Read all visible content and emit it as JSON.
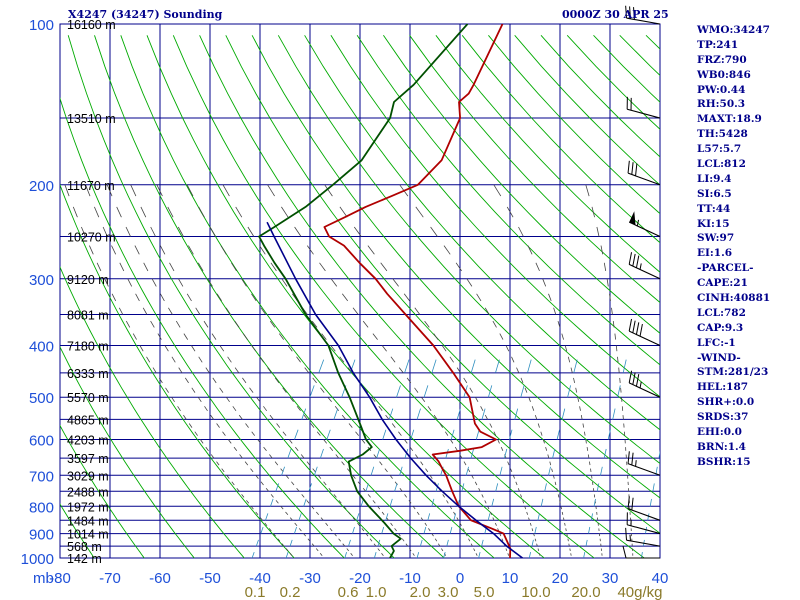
{
  "header": {
    "station": "X4247 (34247) Sounding",
    "time": "0000Z 30 APR 25"
  },
  "indices": [
    "WMO:34247",
    "TP:241",
    "FRZ:790",
    "WB0:846",
    "PW:0.44",
    "RH:50.3",
    "MAXT:18.9",
    "TH:5428",
    "L57:5.7",
    "LCL:812",
    "LI:9.4",
    "SI:6.5",
    "TT:44",
    "KI:15",
    "SW:97",
    "EI:1.6",
    "-PARCEL-",
    "CAPE:21",
    "CINH:40881",
    "LCL:782",
    "CAP:9.3",
    "LFC:-1",
    "-WIND-",
    "STM:281/23",
    "HEL:187",
    "SHR+:0.0",
    "SRDS:37",
    "EHI:0.0",
    "BRN:1.4",
    "BSHR:15"
  ],
  "colors": {
    "frame": "#00008b",
    "isobar": "#00008b",
    "isotherm": "#00008b",
    "dry_adiabat": "#00aa00",
    "moist_adiabat": "#444444",
    "mixing_ratio": "#2f8fbf",
    "temperature": "#b00000",
    "dewpoint": "#005000",
    "parcel": "#00008b",
    "axis_text": "#1e4fd8",
    "mixing_ratio_text": "#8a7a2a",
    "wind_barb": "#000000"
  },
  "chart_data": {
    "type": "skew-t",
    "y_axis_label": "mb",
    "y_scale": "log",
    "y_range_mb": [
      1000,
      100
    ],
    "x_range_c": [
      -80,
      40
    ],
    "pressure_ticks": [
      1000,
      900,
      800,
      700,
      600,
      500,
      400,
      300,
      200,
      100
    ],
    "temperature_ticks": [
      -80,
      -70,
      -60,
      -50,
      -40,
      -30,
      -20,
      -10,
      0,
      10,
      20,
      30,
      40
    ],
    "mixing_ratio_labels": [
      "0.1",
      "0.2",
      "0.6",
      "1.0",
      "2.0",
      "3.0",
      "5.0",
      "10.0",
      "20.0",
      "40g/kg"
    ],
    "height_labels": [
      {
        "p": 1000,
        "text": "142 m"
      },
      {
        "p": 950,
        "text": "568 m"
      },
      {
        "p": 900,
        "text": "1014 m"
      },
      {
        "p": 850,
        "text": "1484 m"
      },
      {
        "p": 800,
        "text": "1972 m"
      },
      {
        "p": 750,
        "text": "2488 m"
      },
      {
        "p": 700,
        "text": "3029 m"
      },
      {
        "p": 650,
        "text": "3597 m"
      },
      {
        "p": 600,
        "text": "4203 m"
      },
      {
        "p": 550,
        "text": "4865 m"
      },
      {
        "p": 500,
        "text": "5570 m"
      },
      {
        "p": 450,
        "text": "6333 m"
      },
      {
        "p": 400,
        "text": "7180 m"
      },
      {
        "p": 350,
        "text": "8081 m"
      },
      {
        "p": 300,
        "text": "9120 m"
      },
      {
        "p": 250,
        "text": "10270 m"
      },
      {
        "p": 200,
        "text": "11670 m"
      },
      {
        "p": 150,
        "text": "13510 m"
      },
      {
        "p": 100,
        "text": "16160 m"
      }
    ],
    "series": [
      {
        "key": "temperature",
        "points": [
          [
            1010,
            11
          ],
          [
            1000,
            10
          ],
          [
            960,
            9
          ],
          [
            900,
            6
          ],
          [
            880,
            3
          ],
          [
            850,
            -2
          ],
          [
            800,
            -6
          ],
          [
            750,
            -9
          ],
          [
            700,
            -12
          ],
          [
            680,
            -13.5
          ],
          [
            660,
            -15
          ],
          [
            640,
            -17
          ],
          [
            630,
            -12
          ],
          [
            620,
            -8
          ],
          [
            600,
            -6
          ],
          [
            580,
            -10
          ],
          [
            560,
            -12
          ],
          [
            500,
            -16
          ],
          [
            450,
            -22
          ],
          [
            400,
            -29
          ],
          [
            350,
            -38
          ],
          [
            320,
            -44
          ],
          [
            300,
            -48
          ],
          [
            280,
            -53
          ],
          [
            260,
            -58
          ],
          [
            250,
            -62
          ],
          [
            240,
            -64
          ],
          [
            230,
            -61
          ],
          [
            220,
            -58
          ],
          [
            210,
            -54
          ],
          [
            200,
            -50
          ],
          [
            180,
            -48
          ],
          [
            150,
            -49
          ],
          [
            140,
            -51
          ],
          [
            135,
            -50
          ],
          [
            130,
            -50
          ],
          [
            100,
            -51
          ]
        ]
      },
      {
        "key": "dewpoint",
        "points": [
          [
            1010,
            -14
          ],
          [
            1000,
            -14
          ],
          [
            970,
            -14
          ],
          [
            950,
            -15
          ],
          [
            920,
            -14
          ],
          [
            900,
            -16
          ],
          [
            860,
            -19
          ],
          [
            800,
            -24
          ],
          [
            750,
            -28
          ],
          [
            700,
            -31
          ],
          [
            660,
            -33
          ],
          [
            640,
            -31
          ],
          [
            620,
            -30
          ],
          [
            600,
            -32
          ],
          [
            560,
            -35
          ],
          [
            500,
            -40
          ],
          [
            450,
            -45
          ],
          [
            400,
            -50
          ],
          [
            350,
            -58
          ],
          [
            300,
            -66
          ],
          [
            280,
            -70
          ],
          [
            260,
            -74
          ],
          [
            250,
            -76
          ],
          [
            240,
            -74
          ],
          [
            220,
            -70
          ],
          [
            200,
            -67
          ],
          [
            180,
            -64
          ],
          [
            150,
            -63
          ],
          [
            140,
            -64
          ],
          [
            130,
            -62
          ],
          [
            100,
            -58
          ]
        ]
      },
      {
        "key": "parcel",
        "points": [
          [
            1000,
            12.5
          ],
          [
            950,
            8
          ],
          [
            900,
            4
          ],
          [
            850,
            -1
          ],
          [
            800,
            -6
          ],
          [
            750,
            -11
          ],
          [
            700,
            -16
          ],
          [
            650,
            -21
          ],
          [
            600,
            -26
          ],
          [
            550,
            -31
          ],
          [
            500,
            -36
          ],
          [
            450,
            -42
          ],
          [
            400,
            -48
          ],
          [
            350,
            -56
          ],
          [
            300,
            -64
          ],
          [
            250,
            -73
          ],
          [
            235,
            -76
          ]
        ]
      }
    ],
    "wind_barbs": [
      {
        "p": 1000,
        "dir": 270,
        "speed_kt": 10
      },
      {
        "p": 950,
        "dir": 280,
        "speed_kt": 15
      },
      {
        "p": 900,
        "dir": 285,
        "speed_kt": 15
      },
      {
        "p": 850,
        "dir": 290,
        "speed_kt": 20
      },
      {
        "p": 700,
        "dir": 290,
        "speed_kt": 25
      },
      {
        "p": 500,
        "dir": 295,
        "speed_kt": 35
      },
      {
        "p": 400,
        "dir": 295,
        "speed_kt": 40
      },
      {
        "p": 300,
        "dir": 295,
        "speed_kt": 35
      },
      {
        "p": 250,
        "dir": 295,
        "speed_kt": 55
      },
      {
        "p": 200,
        "dir": 290,
        "speed_kt": 30
      },
      {
        "p": 150,
        "dir": 285,
        "speed_kt": 20
      },
      {
        "p": 100,
        "dir": 280,
        "speed_kt": 30
      }
    ]
  }
}
